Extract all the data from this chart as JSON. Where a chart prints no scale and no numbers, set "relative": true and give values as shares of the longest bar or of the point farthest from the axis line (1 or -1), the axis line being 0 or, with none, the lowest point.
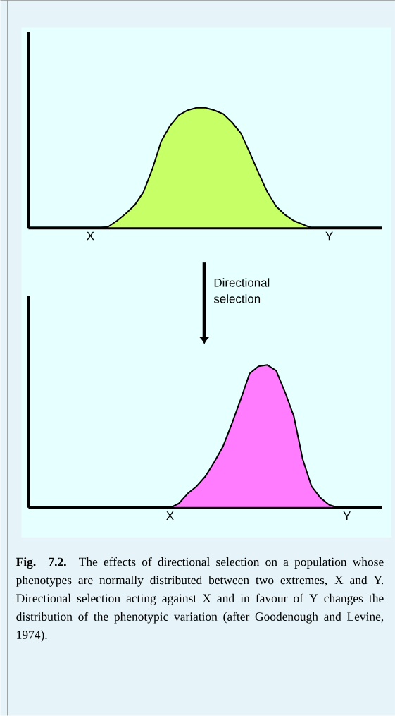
{
  "chart_data": [
    {
      "type": "area",
      "relative": true,
      "color": "#c6ff66",
      "categories": [
        null,
        null,
        null,
        null,
        null,
        null,
        null,
        "X",
        null,
        null,
        null,
        null,
        null,
        null,
        null,
        null,
        null,
        null,
        null,
        null,
        null,
        null,
        null,
        null,
        null,
        null,
        null,
        null,
        null,
        null,
        null,
        null,
        null,
        null,
        "Y",
        null,
        null,
        null,
        null,
        null,
        null
      ],
      "values": [
        null,
        null,
        null,
        null,
        null,
        null,
        null,
        null,
        0,
        0.01,
        0.06,
        0.12,
        0.19,
        0.3,
        0.49,
        0.72,
        0.85,
        0.94,
        0.98,
        1,
        1,
        0.98,
        0.95,
        0.88,
        0.79,
        0.63,
        0.46,
        0.3,
        0.18,
        0.11,
        0.06,
        0.03,
        0,
        null,
        null,
        null,
        null,
        null,
        null,
        null,
        null
      ],
      "annotations": [
        "Directional selection"
      ]
    },
    {
      "type": "area",
      "relative": true,
      "color": "#ff7cff",
      "categories": [
        null,
        null,
        null,
        null,
        null,
        null,
        null,
        null,
        null,
        null,
        null,
        null,
        null,
        null,
        null,
        null,
        "X",
        null,
        null,
        null,
        null,
        null,
        null,
        null,
        null,
        null,
        null,
        null,
        null,
        null,
        null,
        null,
        null,
        null,
        null,
        null,
        "Y",
        null,
        null,
        null,
        null
      ],
      "values": [
        null,
        null,
        null,
        null,
        null,
        null,
        null,
        null,
        null,
        null,
        null,
        null,
        null,
        null,
        null,
        null,
        0,
        0.03,
        0.1,
        0.15,
        0.22,
        0.32,
        0.43,
        0.59,
        0.76,
        0.94,
        0.99,
        1,
        0.96,
        0.81,
        0.64,
        0.34,
        0.15,
        0.07,
        0.02,
        0,
        null,
        null,
        null,
        null,
        null
      ],
      "annotations": [
        "**Fig. 7.2.** The effects of directional selection on a population whose phenotypes are normally distributed between two extremes, X and Y. Directional selection acting against X and in favour of Y changes the distribution of the phenotypic variation (after Goodenough and Levine, 1974)."
      ]
    }
  ]
}
